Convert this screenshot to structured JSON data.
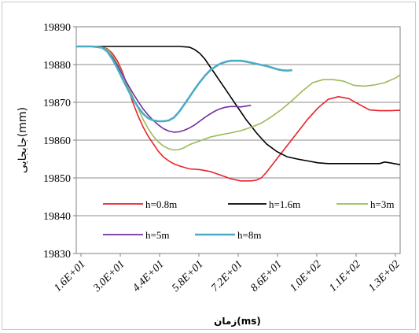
{
  "chart_data": {
    "type": "line",
    "xlabel": "زمان(ms)",
    "ylabel": "جابجایی(mm)",
    "ylim": [
      19830,
      19890
    ],
    "yticks": [
      "19830",
      "19840",
      "19850",
      "19860",
      "19870",
      "19880",
      "19890"
    ],
    "x_tick_labels": [
      "1.6E+01",
      "3.0E+01",
      "4.4E+01",
      "5.8E+01",
      "7.2E+01",
      "8.6E+01",
      "1.0E+02",
      "1.1E+02",
      "1.3E+02"
    ],
    "xlim": [
      16,
      142
    ],
    "grid": "horizontal",
    "legend_placement": "inside-bottom",
    "series": [
      {
        "name": "h=0.8m",
        "color": "#e8232a",
        "x": [
          16,
          22,
          26,
          28,
          30,
          32,
          34,
          36,
          38,
          40,
          42,
          44,
          46,
          48,
          50,
          52,
          54,
          56,
          58,
          60,
          64,
          68,
          72,
          76,
          80,
          84,
          86,
          88,
          90,
          94,
          98,
          102,
          106,
          110,
          114,
          118,
          122,
          126,
          130,
          134,
          138,
          142
        ],
        "y": [
          19884.8,
          19884.8,
          19884.6,
          19884.2,
          19883,
          19881,
          19878,
          19874,
          19870,
          19866.5,
          19863.5,
          19861,
          19859,
          19857,
          19855.5,
          19854.5,
          19853.7,
          19853.2,
          19852.8,
          19852.4,
          19852.2,
          19851.7,
          19850.8,
          19849.8,
          19849.2,
          19849.2,
          19849.4,
          19850,
          19851.5,
          19855,
          19858.5,
          19862,
          19865.5,
          19868.5,
          19870.8,
          19871.5,
          19871,
          19869.5,
          19868,
          19867.8,
          19867.8,
          19867.9
        ]
      },
      {
        "name": "h=1.6m",
        "color": "#000000",
        "x": [
          16,
          30,
          40,
          50,
          56,
          60,
          62,
          64,
          66,
          68,
          70,
          72,
          74,
          76,
          78,
          80,
          82,
          84,
          86,
          88,
          90,
          94,
          98,
          102,
          106,
          110,
          114,
          118,
          122,
          126,
          130,
          134,
          136,
          138,
          142
        ],
        "y": [
          19884.8,
          19884.8,
          19884.8,
          19884.8,
          19884.8,
          19884.6,
          19884,
          19883,
          19881.5,
          19879.5,
          19877.5,
          19875.5,
          19873.5,
          19871.5,
          19869.5,
          19867.5,
          19865.5,
          19863.8,
          19862,
          19860.5,
          19859,
          19857,
          19855.6,
          19855,
          19854.5,
          19854,
          19853.8,
          19853.8,
          19853.8,
          19853.8,
          19853.8,
          19853.8,
          19854.2,
          19854,
          19853.5
        ]
      },
      {
        "name": "h=3m",
        "color": "#9bbb59",
        "x": [
          16,
          22,
          26,
          28,
          30,
          32,
          34,
          36,
          38,
          40,
          42,
          44,
          46,
          48,
          50,
          52,
          54,
          56,
          58,
          60,
          64,
          68,
          72,
          76,
          80,
          84,
          88,
          92,
          96,
          100,
          104,
          108,
          112,
          116,
          120,
          124,
          128,
          132,
          136,
          140,
          142
        ],
        "y": [
          19884.8,
          19884.8,
          19884.6,
          19884,
          19882.5,
          19880.2,
          19877.5,
          19874.5,
          19871.5,
          19868.5,
          19865.5,
          19863,
          19861,
          19859.5,
          19858.4,
          19857.7,
          19857.4,
          19857.5,
          19858,
          19858.8,
          19859.8,
          19860.8,
          19861.4,
          19861.9,
          19862.5,
          19863.4,
          19864.5,
          19866.2,
          19868.2,
          19870.5,
          19873,
          19875.2,
          19876,
          19876,
          19875.6,
          19874.5,
          19874.3,
          19874.6,
          19875.2,
          19876.4,
          19877.2
        ]
      },
      {
        "name": "h=5m",
        "color": "#7030a0",
        "x": [
          16,
          22,
          26,
          28,
          30,
          32,
          34,
          36,
          38,
          40,
          42,
          44,
          46,
          48,
          50,
          52,
          54,
          56,
          58,
          60,
          62,
          64,
          66,
          68,
          70,
          72,
          74,
          76,
          78,
          80,
          82,
          84
        ],
        "y": [
          19884.8,
          19884.8,
          19884.4,
          19883.5,
          19882,
          19879.8,
          19877.3,
          19874.8,
          19872.5,
          19870.3,
          19868.3,
          19866.6,
          19865.2,
          19864,
          19863,
          19862.4,
          19862.1,
          19862.2,
          19862.6,
          19863.2,
          19864,
          19865,
          19866,
          19866.9,
          19867.7,
          19868.3,
          19868.7,
          19868.9,
          19868.9,
          19868.8,
          19869,
          19869.2
        ]
      },
      {
        "name": "h=8m",
        "color": "#4bacc6",
        "x": [
          16,
          22,
          26,
          28,
          30,
          32,
          34,
          36,
          38,
          40,
          42,
          44,
          46,
          48,
          50,
          52,
          54,
          56,
          58,
          60,
          62,
          64,
          66,
          68,
          70,
          72,
          74,
          76,
          78,
          80,
          82,
          84,
          86,
          88,
          90,
          92,
          94,
          96,
          98,
          100
        ],
        "y": [
          19884.8,
          19884.8,
          19884.5,
          19883.5,
          19881.5,
          19879,
          19876.2,
          19873.5,
          19871,
          19868.8,
          19867,
          19865.8,
          19865.2,
          19865,
          19865,
          19865.2,
          19866,
          19867.5,
          19869.4,
          19871.4,
          19873.4,
          19875.3,
          19877,
          19878.4,
          19879.4,
          19880.2,
          19880.7,
          19881,
          19881,
          19881,
          19880.8,
          19880.5,
          19880.2,
          19879.9,
          19879.6,
          19879.2,
          19878.8,
          19878.5,
          19878.4,
          19878.5
        ]
      }
    ]
  }
}
